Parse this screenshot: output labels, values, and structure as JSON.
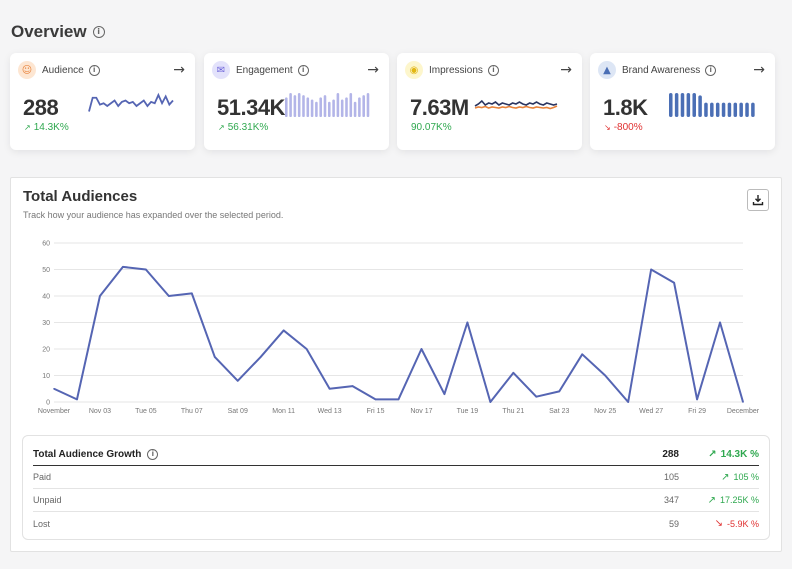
{
  "overview": {
    "title": "Overview"
  },
  "cards": [
    {
      "label": "Audience",
      "value": "288",
      "change": "14.3K%",
      "trend": "up",
      "icon": "audience-icon",
      "icon_bg": "#fde6d2",
      "icon_color": "#e8823a",
      "spark_type": "line",
      "spark": [
        4,
        14,
        14,
        9,
        10,
        8,
        10,
        12,
        8,
        11,
        12,
        10,
        11,
        8,
        10,
        12,
        8,
        11,
        10,
        16,
        10,
        15,
        9,
        12
      ]
    },
    {
      "label": "Engagement",
      "value": "51.34K",
      "change": "56.31K%",
      "trend": "up",
      "icon": "chat-icon",
      "icon_bg": "#e3e2fb",
      "icon_color": "#6c63d9",
      "spark_type": "bars",
      "spark": [
        18,
        22,
        20,
        22,
        20,
        18,
        16,
        14,
        18,
        20,
        14,
        16,
        22,
        16,
        18,
        22,
        14,
        18,
        20,
        22
      ]
    },
    {
      "label": "Impressions",
      "value": "7.63M",
      "change": "90.07K%",
      "trend": "up",
      "icon": "eye-icon",
      "icon_bg": "#fdf6cc",
      "icon_color": "#e2b714",
      "spark_type": "area",
      "spark": [
        3,
        5,
        8,
        4,
        6,
        5,
        7,
        4,
        6,
        5,
        4,
        6,
        5,
        7,
        5,
        4,
        6,
        5,
        7,
        5,
        4,
        6,
        5,
        4,
        5
      ]
    },
    {
      "label": "Brand Awareness",
      "value": "1.8K",
      "change": "-800%",
      "trend": "down",
      "icon": "megaphone-icon",
      "icon_bg": "#dde6f5",
      "icon_color": "#4b6fb5",
      "spark_type": "bars",
      "spark": [
        20,
        20,
        20,
        20,
        20,
        18,
        12,
        12,
        12,
        12,
        12,
        12,
        12,
        12,
        12
      ]
    }
  ],
  "panel": {
    "title": "Total Audiences",
    "subtitle": "Track how your audience has expanded over the selected period."
  },
  "chart_data": {
    "type": "line",
    "title": "Total Audiences",
    "x": [
      "November",
      "Nov 02",
      "Nov 03",
      "Nov 04",
      "Tue 05",
      "Nov 06",
      "Thu 07",
      "Nov 08",
      "Sat 09",
      "Nov 10",
      "Mon 11",
      "Nov 12",
      "Wed 13",
      "Nov 14",
      "Fri 15",
      "Nov 16",
      "Nov 17",
      "Nov 18",
      "Tue 19",
      "Nov 20",
      "Thu 21",
      "Nov 22",
      "Sat 23",
      "Nov 24",
      "Nov 25",
      "Nov 26",
      "Wed 27",
      "Nov 28",
      "Fri 29",
      "Nov 30",
      "December"
    ],
    "tick_labels": [
      "November",
      "Nov 03",
      "Tue 05",
      "Thu 07",
      "Sat 09",
      "Mon 11",
      "Wed 13",
      "Fri 15",
      "Nov 17",
      "Tue 19",
      "Thu 21",
      "Sat 23",
      "Nov 25",
      "Wed 27",
      "Fri 29",
      "December"
    ],
    "values": [
      5,
      1,
      40,
      51,
      50,
      40,
      41,
      17,
      8,
      17,
      27,
      20,
      5,
      6,
      1,
      1,
      20,
      3,
      30,
      0,
      11,
      2,
      4,
      18,
      10,
      0,
      50,
      45,
      1,
      30,
      0
    ],
    "ylim": [
      0,
      60
    ],
    "yticks": [
      0,
      10,
      20,
      30,
      40,
      50,
      60
    ],
    "color": "#5565b3"
  },
  "growth_table": {
    "title": "Total Audience Growth",
    "total": "288",
    "total_change": "14.3K %",
    "rows": [
      {
        "name": "Paid",
        "value": "105",
        "change": "105 %",
        "trend": "up"
      },
      {
        "name": "Unpaid",
        "value": "347",
        "change": "17.25K %",
        "trend": "up"
      },
      {
        "name": "Lost",
        "value": "59",
        "change": "-5.9K %",
        "trend": "down"
      }
    ]
  },
  "colors": {
    "up": "#2fa84f",
    "down": "#e03131",
    "accent": "#5565b3"
  }
}
